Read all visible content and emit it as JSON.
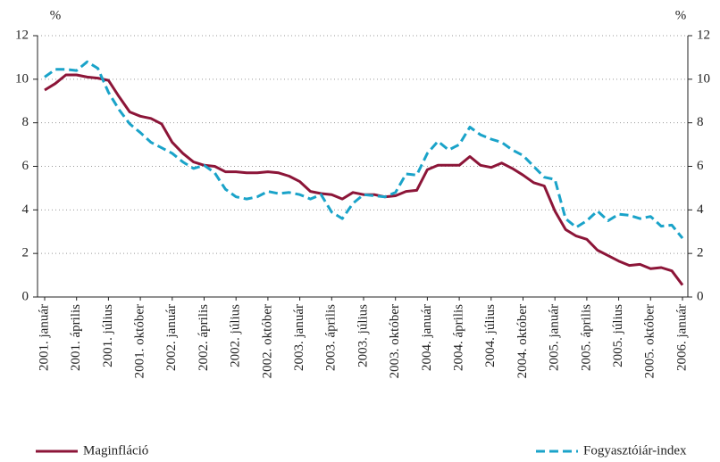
{
  "chart_data": {
    "type": "line",
    "ylabel": "%",
    "y2label": "%",
    "categories": [
      "2001. január",
      null,
      null,
      "2001. április",
      null,
      null,
      "2001. július",
      null,
      null,
      "2001. október",
      null,
      null,
      "2002. január",
      null,
      null,
      "2002. április",
      null,
      null,
      "2002. július",
      null,
      null,
      "2002. október",
      null,
      null,
      "2003. január",
      null,
      null,
      "2003. április",
      null,
      null,
      "2003. július",
      null,
      null,
      "2003. október",
      null,
      null,
      "2004. január",
      null,
      null,
      "2004. április",
      null,
      null,
      "2004. július",
      null,
      null,
      "2004. október",
      null,
      null,
      "2005. január",
      null,
      null,
      "2005. április",
      null,
      null,
      "2005. július",
      null,
      null,
      "2005. október",
      null,
      null,
      "2006. január"
    ],
    "series": [
      {
        "name": "Maginfláció",
        "color": "#8c1538",
        "style": "solid",
        "values": [
          9.5,
          9.8,
          10.2,
          10.2,
          10.1,
          10.05,
          9.95,
          9.2,
          8.5,
          8.3,
          8.2,
          7.95,
          7.1,
          6.6,
          6.2,
          6.05,
          6.0,
          5.75,
          5.75,
          5.7,
          5.7,
          5.75,
          5.7,
          5.55,
          5.3,
          4.85,
          4.75,
          4.7,
          4.5,
          4.8,
          4.7,
          4.7,
          4.6,
          4.65,
          4.85,
          4.9,
          5.85,
          6.05,
          6.05,
          6.05,
          6.45,
          6.05,
          5.95,
          6.15,
          5.9,
          5.6,
          5.25,
          5.1,
          3.95,
          3.1,
          2.8,
          2.65,
          2.15,
          1.9,
          1.65,
          1.45,
          1.5,
          1.3,
          1.35,
          1.2,
          0.55
        ]
      },
      {
        "name": "Fogyasztóiár-index",
        "color": "#1aa3c9",
        "style": "dashed",
        "values": [
          10.1,
          10.45,
          10.45,
          10.4,
          10.8,
          10.5,
          9.4,
          8.6,
          7.95,
          7.55,
          7.1,
          6.85,
          6.6,
          6.2,
          5.9,
          6.05,
          5.7,
          4.95,
          4.6,
          4.5,
          4.6,
          4.85,
          4.75,
          4.8,
          4.7,
          4.5,
          4.7,
          3.9,
          3.6,
          4.3,
          4.7,
          4.65,
          4.6,
          4.8,
          5.65,
          5.6,
          6.6,
          7.15,
          6.75,
          7.0,
          7.8,
          7.45,
          7.25,
          7.1,
          6.75,
          6.5,
          6.0,
          5.5,
          5.4,
          3.6,
          3.2,
          3.5,
          3.95,
          3.5,
          3.8,
          3.75,
          3.6,
          3.7,
          3.25,
          3.3,
          2.7
        ]
      }
    ],
    "ylim": [
      0,
      12
    ],
    "yticks": [
      0,
      2,
      4,
      6,
      8,
      10,
      12
    ],
    "y2lim": [
      0,
      12
    ],
    "y2ticks": [
      0,
      2,
      4,
      6,
      8,
      10,
      12
    ],
    "grid": true,
    "legend": "bottom"
  }
}
